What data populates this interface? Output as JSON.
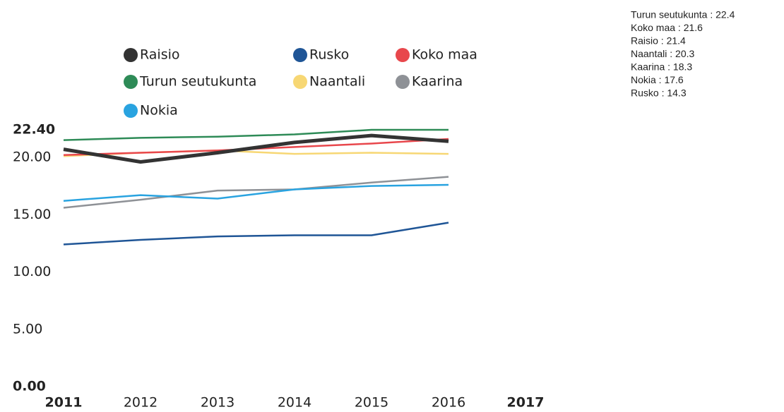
{
  "chart_data": {
    "type": "line",
    "categories": [
      "2011",
      "2012",
      "2013",
      "2014",
      "2015",
      "2016",
      "2017"
    ],
    "series": [
      {
        "name": "Raisio",
        "color": "#333333",
        "values": [
          20.7,
          19.6,
          20.4,
          21.3,
          21.9,
          21.4,
          null
        ]
      },
      {
        "name": "Rusko",
        "color": "#1f5596",
        "values": [
          12.4,
          12.8,
          13.1,
          13.2,
          13.2,
          14.3,
          null
        ]
      },
      {
        "name": "Koko maa",
        "color": "#e8474c",
        "values": [
          20.2,
          20.4,
          20.6,
          20.9,
          21.2,
          21.6,
          null
        ]
      },
      {
        "name": "Turun seutukunta",
        "color": "#2e8b57",
        "values": [
          21.5,
          21.7,
          21.8,
          22.0,
          22.4,
          22.4,
          null
        ]
      },
      {
        "name": "Naantali",
        "color": "#f7d774",
        "values": [
          20.1,
          20.4,
          20.6,
          20.3,
          20.4,
          20.3,
          null
        ]
      },
      {
        "name": "Kaarina",
        "color": "#8e9196",
        "values": [
          15.6,
          16.3,
          17.1,
          17.2,
          17.8,
          18.3,
          null
        ]
      },
      {
        "name": "Nokia",
        "color": "#29a3e0",
        "values": [
          16.2,
          16.7,
          16.4,
          17.2,
          17.5,
          17.6,
          null
        ]
      }
    ],
    "ylim": [
      0,
      22.4
    ],
    "yticks": [
      {
        "value": 0,
        "label": "0.00"
      },
      {
        "value": 5,
        "label": "5.00"
      },
      {
        "value": 10,
        "label": "10.00"
      },
      {
        "value": 15,
        "label": "15.00"
      },
      {
        "value": 20,
        "label": "20.00"
      },
      {
        "value": 22.4,
        "label": "22.40"
      }
    ],
    "annotations": [
      "Turun seutukunta : 22.4",
      "Koko maa : 21.6",
      "Raisio : 21.4",
      "Naantali : 20.3",
      "Kaarina : 18.3",
      "Nokia : 17.6",
      "Rusko : 14.3"
    ]
  }
}
